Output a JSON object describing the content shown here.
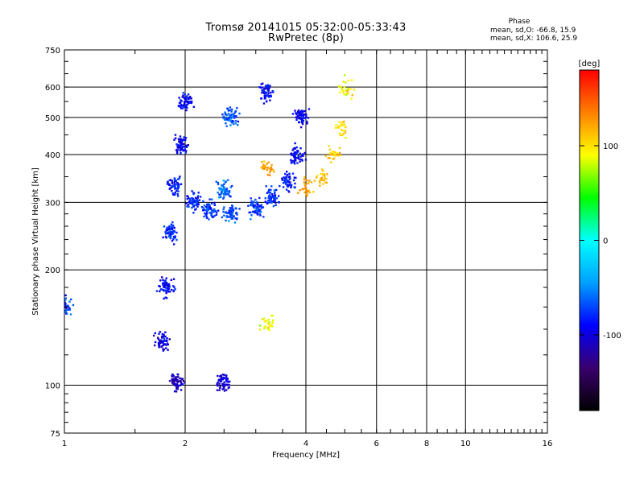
{
  "header": {
    "title_line1": "Tromsø 20141015 05:32:00-05:33:43",
    "title_line2": "RwPretec (8p)",
    "phase_title": "Phase",
    "phase_o": "mean, sd,O: -66.8, 15.9",
    "phase_x": "mean, sd,X: 106.6, 25.9"
  },
  "chart_data": {
    "type": "scatter",
    "title": "Tromsø 20141015 05:32:00-05:33:43",
    "subtitle": "RwPretec (8p)",
    "xlabel": "Frequency [MHz]",
    "ylabel": "Stationary phase Virtual Height [km]",
    "x_scale": "log",
    "y_scale": "log",
    "xlim": [
      1,
      16
    ],
    "ylim": [
      75,
      750
    ],
    "x_ticks": [
      1,
      2,
      4,
      6,
      8,
      10,
      16
    ],
    "x_tick_labels": [
      "1",
      "2",
      "4",
      "6",
      "8",
      "10",
      "16"
    ],
    "y_ticks": [
      75,
      100,
      200,
      300,
      400,
      500,
      600,
      750
    ],
    "y_tick_labels": [
      "75",
      "100",
      "200",
      "300",
      "400",
      "500",
      "600",
      "750"
    ],
    "grid": true,
    "colorbar": {
      "label": "[deg]",
      "ticks": [
        100,
        0,
        -100
      ],
      "tick_labels": [
        "100",
        "0",
        "-100"
      ],
      "range": [
        -180,
        180
      ],
      "colors": [
        "#000000",
        "#3a006f",
        "#0000ff",
        "#00a0ff",
        "#00ffff",
        "#00ff00",
        "#ffff00",
        "#ff8000",
        "#ff0000"
      ]
    },
    "series": [
      {
        "name": "O",
        "mean_phase": -66.8,
        "sd_phase": 15.9,
        "points": [
          {
            "x": 1.75,
            "y": 130,
            "phase": -100
          },
          {
            "x": 1.8,
            "y": 180,
            "phase": -90
          },
          {
            "x": 1.85,
            "y": 250,
            "phase": -80
          },
          {
            "x": 1.9,
            "y": 330,
            "phase": -85
          },
          {
            "x": 1.95,
            "y": 420,
            "phase": -95
          },
          {
            "x": 2.0,
            "y": 550,
            "phase": -90
          },
          {
            "x": 2.1,
            "y": 300,
            "phase": -80
          },
          {
            "x": 2.3,
            "y": 290,
            "phase": -75
          },
          {
            "x": 2.6,
            "y": 280,
            "phase": -70
          },
          {
            "x": 3.0,
            "y": 290,
            "phase": -75
          },
          {
            "x": 3.3,
            "y": 310,
            "phase": -80
          },
          {
            "x": 3.6,
            "y": 340,
            "phase": -85
          },
          {
            "x": 3.8,
            "y": 400,
            "phase": -90
          },
          {
            "x": 3.9,
            "y": 500,
            "phase": -95
          },
          {
            "x": 2.5,
            "y": 320,
            "phase": -60
          },
          {
            "x": 2.6,
            "y": 500,
            "phase": -65
          },
          {
            "x": 3.2,
            "y": 580,
            "phase": -90
          },
          {
            "x": 1.9,
            "y": 102,
            "phase": -110
          },
          {
            "x": 2.5,
            "y": 102,
            "phase": -105
          },
          {
            "x": 1.0,
            "y": 160,
            "phase": -70
          }
        ]
      },
      {
        "name": "X",
        "mean_phase": 106.6,
        "sd_phase": 25.9,
        "points": [
          {
            "x": 3.2,
            "y": 370,
            "phase": 120
          },
          {
            "x": 4.0,
            "y": 330,
            "phase": 125
          },
          {
            "x": 4.4,
            "y": 350,
            "phase": 115
          },
          {
            "x": 4.7,
            "y": 400,
            "phase": 105
          },
          {
            "x": 4.9,
            "y": 470,
            "phase": 100
          },
          {
            "x": 5.0,
            "y": 600,
            "phase": 95
          },
          {
            "x": 3.2,
            "y": 145,
            "phase": 90
          }
        ]
      }
    ]
  }
}
